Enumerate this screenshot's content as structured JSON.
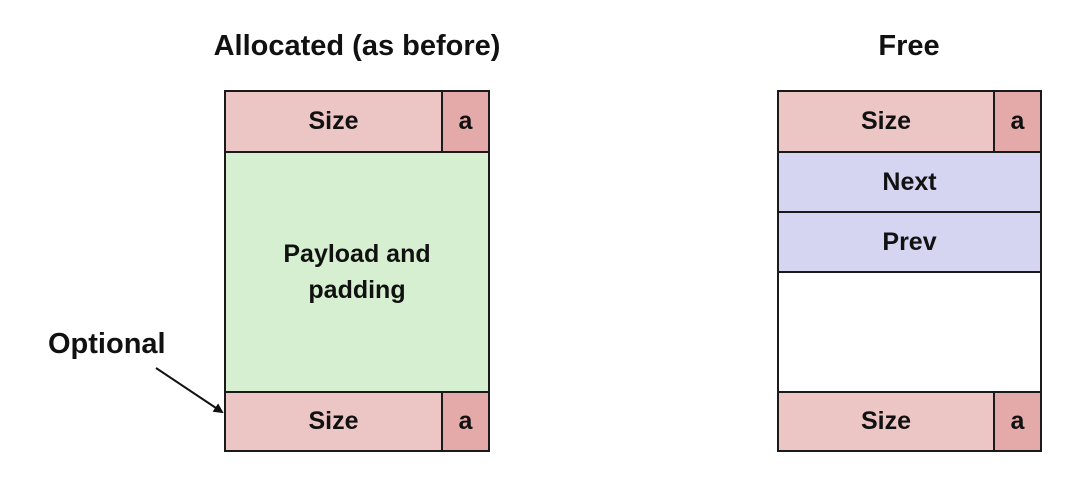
{
  "allocated": {
    "title": "Allocated (as before)",
    "header_size": "Size",
    "header_flag": "a",
    "payload": "Payload and padding",
    "footer_size": "Size",
    "footer_flag": "a"
  },
  "free": {
    "title": "Free",
    "header_size": "Size",
    "header_flag": "a",
    "next": "Next",
    "prev": "Prev",
    "footer_size": "Size",
    "footer_flag": "a"
  },
  "annotation": {
    "optional": "Optional"
  },
  "colors": {
    "size_fill": "#ecc5c5",
    "flag_fill": "#e4aaaa",
    "payload_fill": "#d6efd0",
    "pointer_fill": "#d5d5f2",
    "border": "#1a1a1a"
  }
}
